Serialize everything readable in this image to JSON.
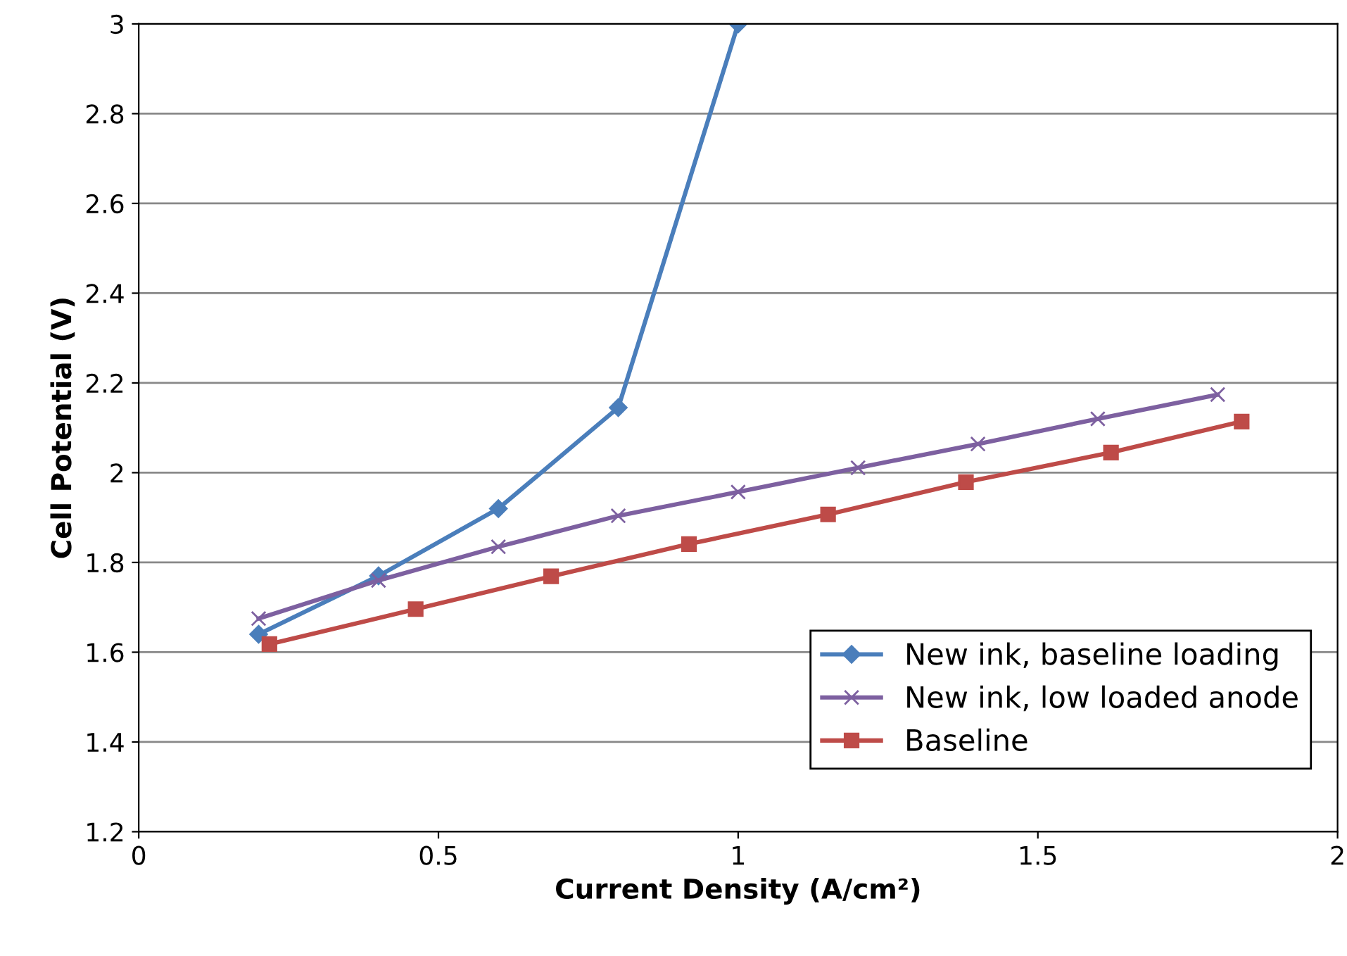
{
  "chart_data": {
    "type": "line",
    "xlabel": "Current Density (A/cm²)",
    "ylabel": "Cell Potential (V)",
    "xlim": [
      0,
      2
    ],
    "xticks": [
      0,
      0.5,
      1,
      1.5,
      2
    ],
    "ylim": [
      1.2,
      3
    ],
    "yticks": [
      1.2,
      1.4,
      1.6,
      1.8,
      2,
      2.2,
      2.4,
      2.6,
      2.8,
      3
    ],
    "grid": "y",
    "legend": "bottom right",
    "series": [
      {
        "name": "New ink, baseline loading",
        "color": "#4a7ebb",
        "marker": "diamond",
        "x": [
          0.2,
          0.4,
          0.6,
          0.8,
          1.0
        ],
        "values": [
          1.64,
          1.77,
          1.92,
          2.145,
          3.0
        ]
      },
      {
        "name": "New ink, low loaded anode",
        "color": "#7d60a0",
        "marker": "cross",
        "x": [
          0.2,
          0.4,
          0.6,
          0.8,
          1.0,
          1.2,
          1.4,
          1.6,
          1.8
        ],
        "values": [
          1.675,
          1.76,
          1.835,
          1.904,
          1.957,
          2.011,
          2.064,
          2.12,
          2.174
        ]
      },
      {
        "name": "Baseline",
        "color": "#be4b48",
        "marker": "square",
        "x": [
          0.218,
          0.462,
          0.688,
          0.918,
          1.15,
          1.38,
          1.622,
          1.84
        ],
        "values": [
          1.618,
          1.696,
          1.769,
          1.841,
          1.907,
          1.979,
          2.045,
          2.114
        ]
      }
    ]
  }
}
